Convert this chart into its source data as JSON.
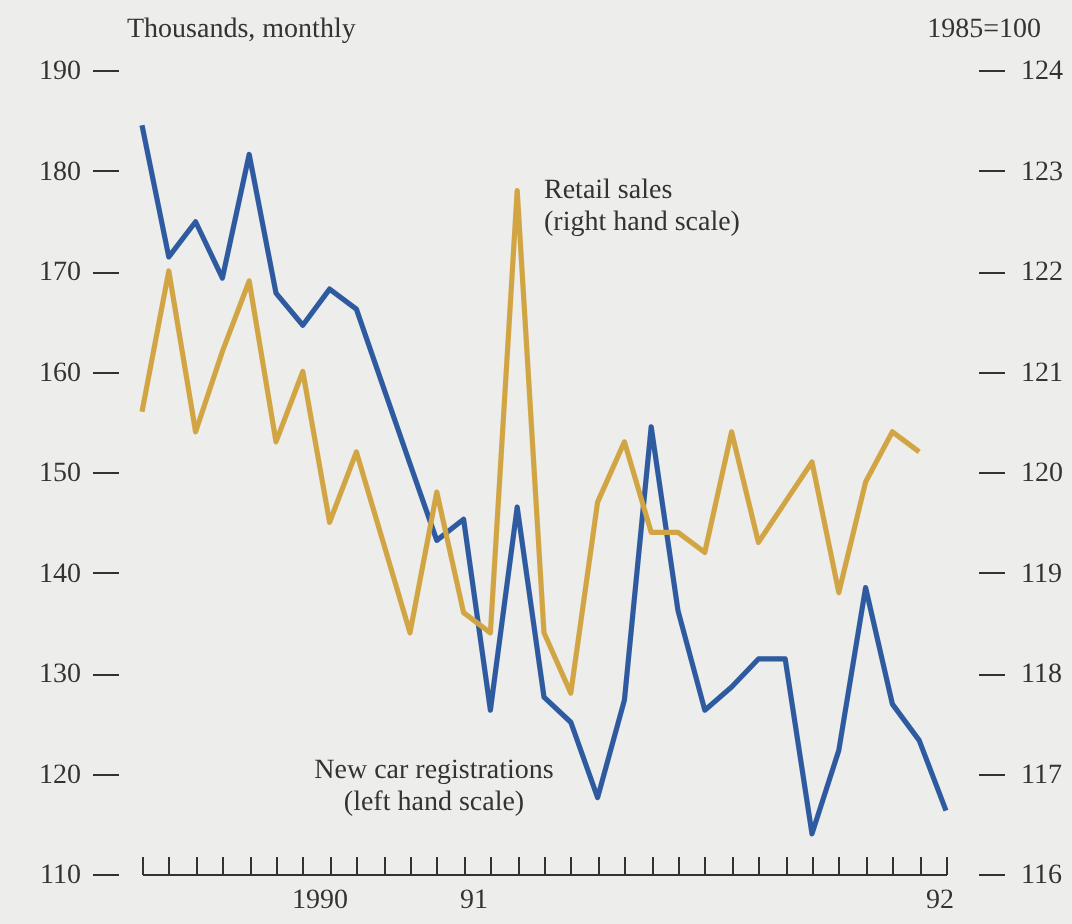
{
  "chart_data": {
    "type": "line",
    "ylabel": "Thousands, monthly",
    "y2label": "1985=100",
    "categories": [
      null,
      null,
      null,
      null,
      null,
      null,
      null,
      null,
      null,
      null,
      null,
      null,
      null,
      null,
      null,
      null,
      null,
      null,
      null,
      null,
      null,
      null,
      null,
      null,
      null,
      null,
      null,
      null,
      null,
      null,
      null
    ],
    "annotations": [
      "1990",
      "91",
      "92"
    ],
    "ylim": [
      110,
      190
    ],
    "yticks": [
      110,
      120,
      130,
      140,
      150,
      160,
      170,
      180,
      190
    ],
    "y2lim": [
      116,
      124
    ],
    "y2ticks": [
      116,
      117,
      118,
      119,
      120,
      121,
      122,
      123,
      124
    ],
    "marker": "none",
    "line_style": "solid",
    "series": [
      {
        "name": "New car registrations (left hand scale)",
        "color": "#2e5aa0",
        "values": [
          184.5,
          171.4,
          174.9,
          169.3,
          181.6,
          167.8,
          164.6,
          168.2,
          166.2,
          158.5,
          150.8,
          143.2,
          145.3,
          126.3,
          146.5,
          127.6,
          125.1,
          117.6,
          127.3,
          154.5,
          136.2,
          126.3,
          128.6,
          131.4,
          131.4,
          114.0,
          122.3,
          138.5,
          126.9,
          123.3,
          116.3
        ]
      },
      {
        "name": "Retail sales (right hand scale)",
        "color": "#d2a544",
        "axis": "y2",
        "values": [
          120.6,
          122.0,
          120.4,
          121.2,
          121.9,
          120.3,
          121.0,
          119.5,
          120.2,
          119.3,
          118.4,
          119.8,
          118.6,
          118.4,
          122.8,
          118.4,
          117.8,
          119.7,
          120.3,
          119.4,
          119.4,
          119.2,
          120.4,
          119.3,
          119.7,
          120.1,
          118.8,
          119.9,
          120.4,
          120.2,
          null
        ]
      }
    ]
  }
}
